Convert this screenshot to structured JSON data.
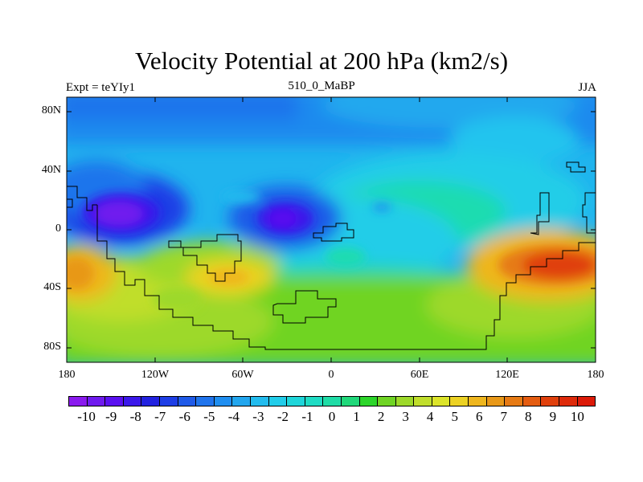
{
  "title": "Velocity Potential at 200 hPa (km2/s)",
  "subtitle_left": "Expt = teYIy1",
  "subtitle_center": "510_0_MaBP",
  "subtitle_right": "JJA",
  "y_axis": {
    "ticks": [
      {
        "label": "80N"
      },
      {
        "label": "40N"
      },
      {
        "label": "0"
      },
      {
        "label": "40S"
      },
      {
        "label": "80S"
      }
    ]
  },
  "x_axis": {
    "ticks": [
      {
        "label": "180"
      },
      {
        "label": "120W"
      },
      {
        "label": "60W"
      },
      {
        "label": "0"
      },
      {
        "label": "60E"
      },
      {
        "label": "120E"
      },
      {
        "label": "180"
      }
    ]
  },
  "colorbar": {
    "colors": [
      "#8a1aee",
      "#6f1aee",
      "#5a10f0",
      "#3b18ea",
      "#2222e0",
      "#1e3ee6",
      "#1f5ae8",
      "#2074ec",
      "#1f8ef0",
      "#22a6ee",
      "#23bcee",
      "#22cdea",
      "#1fd6da",
      "#1fdcc4",
      "#1fdca6",
      "#20d87a",
      "#2cd52a",
      "#6fd424",
      "#9dd92a",
      "#c0de2c",
      "#dce42a",
      "#ecd224",
      "#eeb61e",
      "#e89818",
      "#e67a14",
      "#e45c10",
      "#e0400c",
      "#de2a0a",
      "#dc1a08"
    ],
    "labels": [
      "-10",
      "-9",
      "-8",
      "-7",
      "-6",
      "-5",
      "-4",
      "-3",
      "-2",
      "-1",
      "0",
      "1",
      "2",
      "3",
      "4",
      "5",
      "6",
      "7",
      "8",
      "9",
      "10"
    ]
  }
}
